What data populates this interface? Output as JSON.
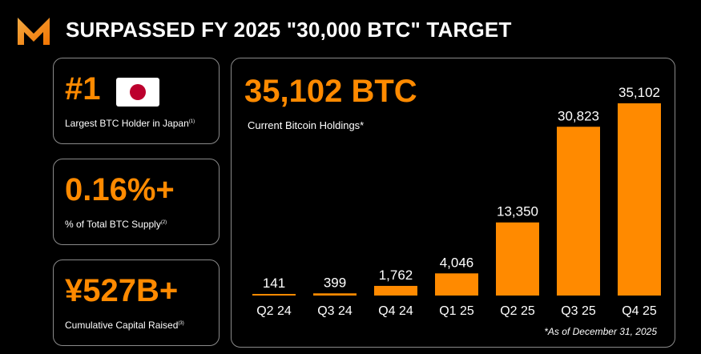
{
  "header": {
    "title": "SURPASSED FY 2025 \"30,000 BTC\" TARGET",
    "logo_icon": "metaplanet-m-logo-icon"
  },
  "stats": [
    {
      "value": "#1",
      "label": "Largest BTC Holder in Japan",
      "footnote": "(1)",
      "icon": "japan-flag-icon"
    },
    {
      "value": "0.16%+",
      "label": "% of Total BTC Supply",
      "footnote": "(2)"
    },
    {
      "value": "¥527B+",
      "label": "Cumulative Capital Raised",
      "footnote": "(3)"
    }
  ],
  "holdings": {
    "value": "35,102 BTC",
    "label": "Current Bitcoin Holdings*",
    "note": "*As of December 31, 2025"
  },
  "colors": {
    "accent": "#ff8a00",
    "background": "#000000",
    "text": "#ffffff",
    "border": "#8a8a8a"
  },
  "chart_data": {
    "type": "bar",
    "title": "",
    "xlabel": "",
    "ylabel": "",
    "categories": [
      "Q2 24",
      "Q3 24",
      "Q4 24",
      "Q1 25",
      "Q2 25",
      "Q3 25",
      "Q4 25"
    ],
    "values": [
      141,
      399,
      1762,
      4046,
      13350,
      30823,
      35102
    ],
    "value_labels": [
      "141",
      "399",
      "1,762",
      "4,046",
      "13,350",
      "30,823",
      "35,102"
    ],
    "ylim": [
      0,
      35102
    ],
    "grid": false
  }
}
